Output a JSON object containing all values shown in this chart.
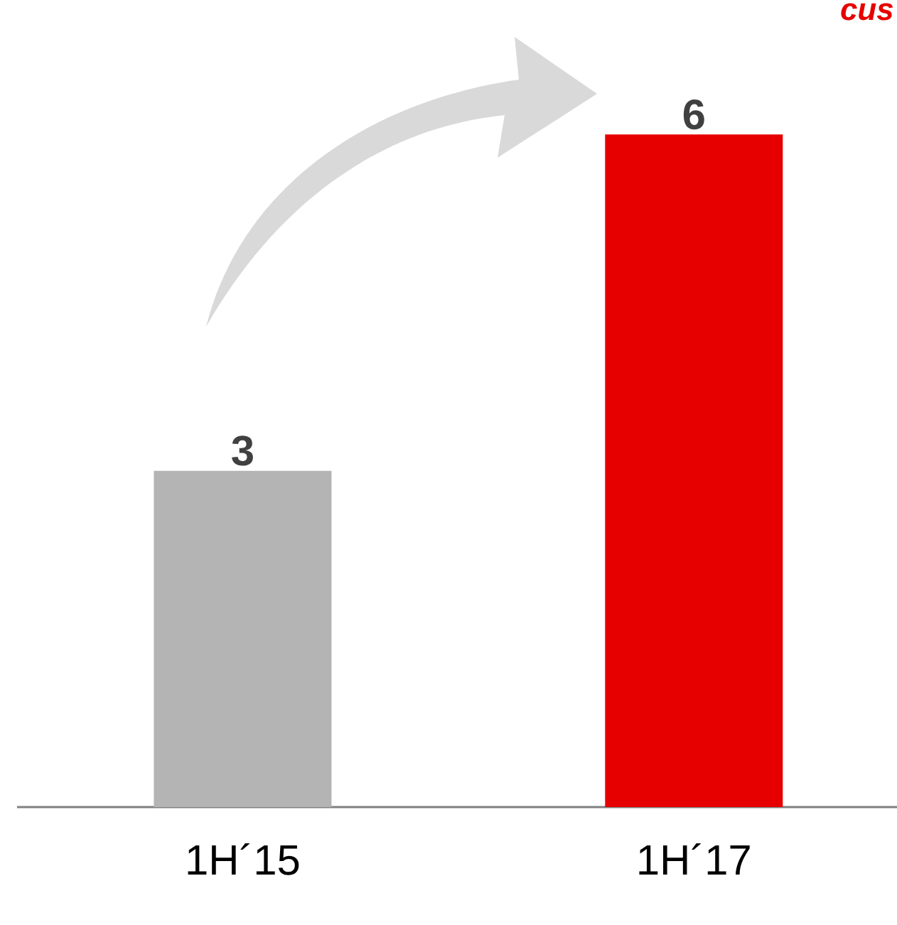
{
  "chart_data": {
    "type": "bar",
    "categories": [
      "1H´15",
      "1H´17"
    ],
    "values": [
      3,
      6
    ],
    "colors": [
      "#b4b4b4",
      "#e60000"
    ],
    "data_labels": true,
    "annotations": [
      "cus"
    ]
  }
}
